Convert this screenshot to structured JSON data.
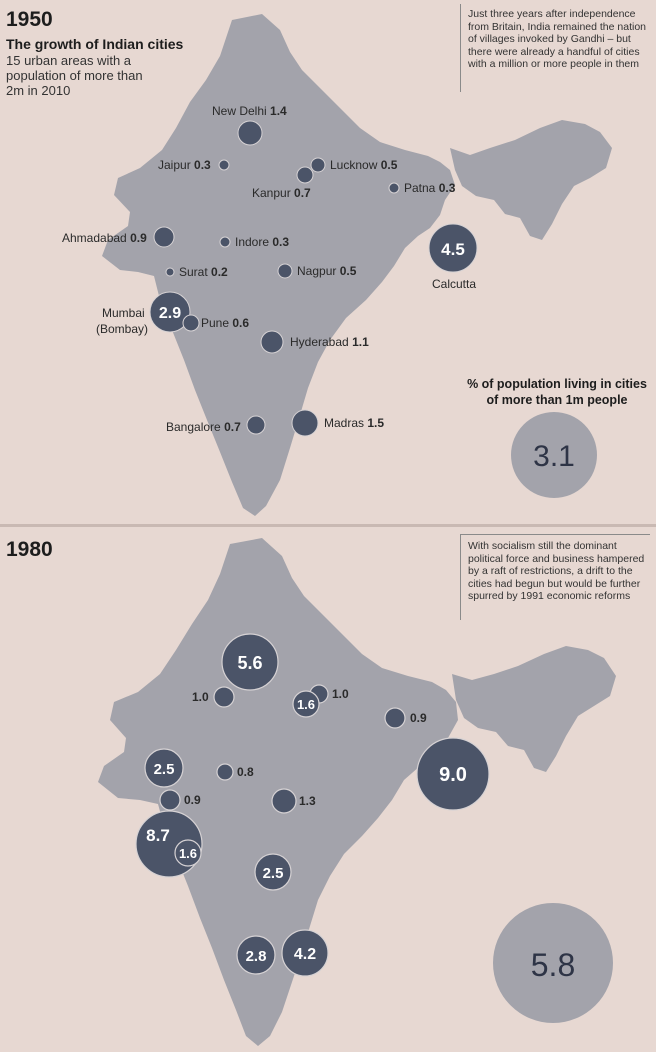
{
  "colors": {
    "background": "#e7d8d2",
    "land": "#a3a3ab",
    "land_stroke": "#b8b8be",
    "city": "#4b5468",
    "city_stroke": "#d6d2d4",
    "share": "#a3a3ab"
  },
  "panel_1950": {
    "year": "1950",
    "title": "The growth of Indian cities",
    "subtitle": "15 urban areas with a population of more than 2m in 2010",
    "note": "Just three years after independence from Britain, India remained the nation of villages invoked by Gandhi – but there were already a handful of cities with a million or more people in them",
    "pct_title": "% of population living in cities of more than 1m people",
    "pct_value": "3.1",
    "bubble_values": {
      "calcutta": "4.5",
      "mumbai": "2.9"
    },
    "cities": [
      {
        "name": "New Delhi",
        "value": "1.4"
      },
      {
        "name": "Jaipur",
        "value": "0.3"
      },
      {
        "name": "Lucknow",
        "value": "0.5"
      },
      {
        "name": "Kanpur",
        "value": "0.7"
      },
      {
        "name": "Patna",
        "value": "0.3"
      },
      {
        "name": "Ahmadabad",
        "value": "0.9"
      },
      {
        "name": "Indore",
        "value": "0.3"
      },
      {
        "name": "Surat",
        "value": "0.2"
      },
      {
        "name": "Nagpur",
        "value": "0.5"
      },
      {
        "name": "Mumbai",
        "value": "",
        "alt": "(Bombay)"
      },
      {
        "name": "Pune",
        "value": "0.6"
      },
      {
        "name": "Hyderabad",
        "value": "1.1"
      },
      {
        "name": "Bangalore",
        "value": "0.7"
      },
      {
        "name": "Madras",
        "value": "1.5"
      },
      {
        "name": "Calcutta",
        "value": ""
      }
    ]
  },
  "panel_1980": {
    "year": "1980",
    "note": "With socialism still the dominant political force and business hampered by a raft of restrictions, a drift to the cities had begun but would be further spurred by 1991 economic reforms",
    "pct_value": "5.8",
    "values": {
      "new_delhi": "5.6",
      "jaipur": "1.0",
      "lucknow": "1.0",
      "kanpur": "1.6",
      "patna": "0.9",
      "ahmadabad": "2.5",
      "indore": "0.8",
      "surat": "0.9",
      "nagpur": "1.3",
      "mumbai": "8.7",
      "pune": "1.6",
      "calcutta": "9.0",
      "hyderabad": "2.5",
      "bangalore": "2.8",
      "madras": "4.2"
    }
  }
}
